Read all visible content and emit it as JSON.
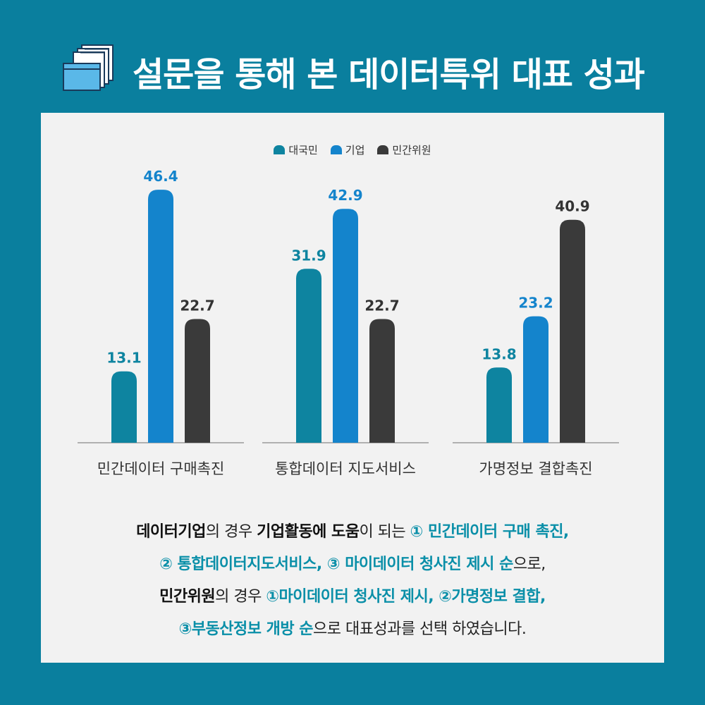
{
  "title": "설문을 통해 본 데이터특위 대표 성과",
  "colors": {
    "background": "#0a7f9e",
    "panel": "#f2f2f2",
    "accent_text": "#0a8fa8"
  },
  "header_icon": "stacked-documents-icon",
  "chart_data": {
    "type": "bar",
    "categories": [
      "민간데이터 구매촉진",
      "통합데이터 지도서비스",
      "가명정보 결합촉진"
    ],
    "series": [
      {
        "name": "대국민",
        "color": "#0e84a0",
        "values": [
          13.1,
          31.9,
          13.8
        ]
      },
      {
        "name": "기업",
        "color": "#1484cc",
        "values": [
          46.4,
          42.9,
          23.2
        ]
      },
      {
        "name": "민간위원",
        "color": "#3a3a3a",
        "values": [
          22.7,
          22.7,
          40.9
        ]
      }
    ],
    "ylim": [
      0,
      50
    ],
    "legend": "top-center",
    "grid": false
  },
  "summary": {
    "line1": {
      "a": "데이터기업",
      "b": "의 경우 ",
      "c": "기업활동에 도움",
      "d": "이 되는 ",
      "e": "① 민간데이터 구매 촉진,"
    },
    "line2": {
      "a": "② 통합데이터지도서비스, ③ 마이데이터 청사진 제시 순",
      "b": "으로,"
    },
    "line3": {
      "a": "민간위원",
      "b": "의 경우 ",
      "c": "①마이데이터 청사진 제시, ②가명정보 결합,"
    },
    "line4": {
      "a": "③부동산정보 개방 순",
      "b": "으로 대표성과를 선택 하였습니다."
    }
  }
}
